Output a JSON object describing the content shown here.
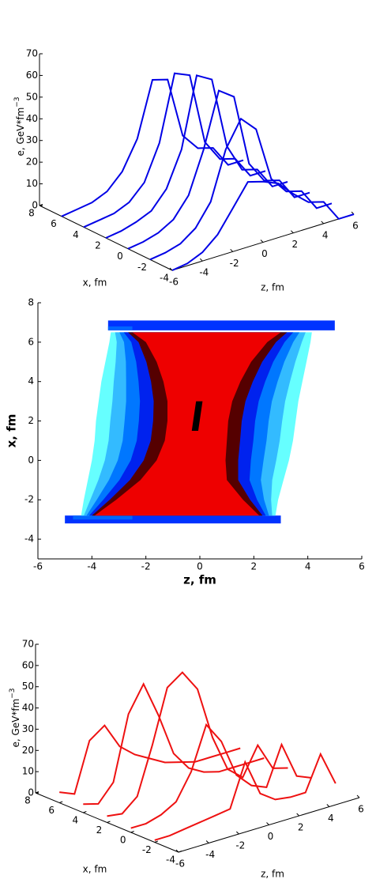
{
  "chart_data": [
    {
      "type": "line3d",
      "color": "#0000e6",
      "xlabel": "x, fm",
      "zlabel": "z, fm",
      "elabel": "e, GeV*fm",
      "elabel_exp": "−3",
      "xlim": [
        -4,
        8
      ],
      "zlim": [
        -6,
        6
      ],
      "elim": [
        0,
        70
      ],
      "xticks": [
        -4,
        -2,
        0,
        2,
        4,
        6,
        8
      ],
      "zticks": [
        -6,
        -4,
        -2,
        0,
        2,
        4,
        6
      ],
      "eticks": [
        0,
        10,
        20,
        30,
        40,
        50,
        60,
        70
      ],
      "z": [
        -6,
        -5,
        -4,
        -3,
        -2,
        -1,
        0,
        1,
        2,
        3,
        4,
        5,
        6
      ],
      "series": [
        {
          "x": 6,
          "values": [
            0,
            1,
            2,
            5,
            12,
            25,
            50,
            48,
            20,
            12,
            10,
            0,
            0
          ]
        },
        {
          "x": 4,
          "values": [
            0,
            1,
            2,
            5,
            12,
            28,
            58,
            55,
            22,
            12,
            10,
            0,
            0
          ]
        },
        {
          "x": 2,
          "values": [
            0,
            1,
            3,
            6,
            14,
            30,
            62,
            58,
            25,
            12,
            10,
            0,
            0
          ]
        },
        {
          "x": 0,
          "values": [
            0,
            1,
            3,
            7,
            16,
            35,
            60,
            55,
            22,
            12,
            10,
            0,
            0
          ]
        },
        {
          "x": -2,
          "values": [
            0,
            1,
            3,
            8,
            18,
            40,
            52,
            45,
            20,
            12,
            10,
            0,
            0
          ]
        },
        {
          "x": -4,
          "values": [
            0,
            1,
            4,
            10,
            20,
            30,
            28,
            25,
            18,
            12,
            10,
            0,
            0
          ]
        }
      ]
    },
    {
      "type": "bands",
      "xlabel": "z, fm",
      "ylabel": "x, fm",
      "xlim": [
        -6,
        6
      ],
      "ylim": [
        -5,
        8
      ],
      "xticks": [
        -6,
        -4,
        -2,
        0,
        2,
        4,
        6
      ],
      "yticks": [
        -4,
        -2,
        0,
        2,
        4,
        6,
        8
      ],
      "rows": [
        -2.8,
        -2,
        -1,
        0,
        1,
        2,
        3,
        4,
        5,
        6,
        6.5
      ],
      "rects": [
        {
          "color": "#0033ff",
          "zlim": [
            -3.4,
            5
          ],
          "xlim": [
            6.6,
            7.1
          ]
        },
        {
          "color": "#0066ff",
          "zlim": [
            -3.4,
            -2.5
          ],
          "xlim": [
            6.6,
            6.8
          ]
        },
        {
          "color": "#0033ff",
          "zlim": [
            -5,
            3
          ],
          "xlim": [
            -3.2,
            -2.8
          ]
        },
        {
          "color": "#0066ff",
          "zlim": [
            -4.7,
            -2.5
          ],
          "xlim": [
            -3,
            -2.8
          ]
        }
      ],
      "layers": [
        {
          "color": "#66ffff",
          "left": [
            -4.4,
            -4.3,
            -4.15,
            -4.0,
            -3.9,
            -3.85,
            -3.75,
            -3.65,
            -3.5,
            -3.35,
            -3.3
          ],
          "right": [
            2.8,
            2.9,
            3.1,
            3.3,
            3.45,
            3.55,
            3.65,
            3.8,
            3.95,
            4.1,
            4.15
          ]
        },
        {
          "color": "#33bbff",
          "left": [
            -4.3,
            -4.06,
            -3.76,
            -3.52,
            -3.38,
            -3.32,
            -3.24,
            -3.19,
            -3.12,
            -3.08,
            -3.14
          ],
          "right": [
            2.68,
            2.64,
            2.68,
            2.83,
            2.96,
            3.05,
            3.16,
            3.34,
            3.54,
            3.78,
            3.92
          ]
        },
        {
          "color": "#0077ff",
          "left": [
            -4.2,
            -3.82,
            -3.37,
            -3.04,
            -2.86,
            -2.79,
            -2.73,
            -2.73,
            -2.74,
            -2.81,
            -2.98
          ],
          "right": [
            2.56,
            2.38,
            2.26,
            2.36,
            2.47,
            2.55,
            2.67,
            2.88,
            3.13,
            3.46,
            3.69
          ]
        },
        {
          "color": "#0022ee",
          "left": [
            -4.1,
            -3.58,
            -2.98,
            -2.56,
            -2.34,
            -2.26,
            -2.22,
            -2.27,
            -2.36,
            -2.54,
            -2.82
          ],
          "right": [
            2.44,
            2.12,
            1.84,
            1.89,
            1.98,
            2.05,
            2.18,
            2.42,
            2.72,
            3.14,
            3.46
          ]
        },
        {
          "color": "#550000",
          "left": [
            -4.0,
            -3.34,
            -2.59,
            -2.08,
            -1.82,
            -1.73,
            -1.71,
            -1.81,
            -1.98,
            -2.27,
            -2.66
          ],
          "right": [
            2.32,
            1.86,
            1.42,
            1.42,
            1.49,
            1.55,
            1.69,
            1.96,
            2.31,
            2.82,
            3.23
          ]
        },
        {
          "color": "#ee0000",
          "left": [
            -3.9,
            -3.1,
            -2.2,
            -1.6,
            -1.3,
            -1.2,
            -1.2,
            -1.35,
            -1.6,
            -2.0,
            -2.5
          ],
          "right": [
            2.2,
            1.6,
            1.0,
            0.95,
            1.0,
            1.05,
            1.2,
            1.5,
            1.9,
            2.5,
            3.0
          ]
        }
      ],
      "blob": {
        "color": "#000000",
        "zlim": [
          -0.3,
          0.1
        ],
        "xlim": [
          1.5,
          3.0
        ]
      }
    },
    {
      "type": "line3d",
      "color": "#ee1111",
      "xlabel": "x, fm",
      "zlabel": "z, fm",
      "elabel": "e, GeV*fm",
      "elabel_exp": "−3",
      "xlim": [
        -4,
        8
      ],
      "zlim": [
        -6,
        6
      ],
      "elim": [
        0,
        70
      ],
      "xticks": [
        -4,
        -2,
        0,
        2,
        4,
        6,
        8
      ],
      "zticks": [
        -6,
        -4,
        -2,
        0,
        2,
        4,
        6
      ],
      "eticks": [
        0,
        10,
        20,
        30,
        40,
        50,
        60,
        70
      ],
      "z": [
        -6,
        -5,
        -4,
        -3,
        -2,
        -1,
        0,
        1,
        2,
        3,
        4,
        5,
        6
      ],
      "series": [
        {
          "x": 6,
          "values": [
            5,
            2,
            25,
            30,
            18,
            12,
            8,
            4,
            2,
            0,
            0,
            0,
            0
          ]
        },
        {
          "x": 4,
          "values": [
            4,
            2,
            10,
            40,
            52,
            35,
            15,
            6,
            2,
            0,
            0,
            0,
            0
          ]
        },
        {
          "x": 2,
          "values": [
            3,
            2,
            8,
            30,
            55,
            60,
            50,
            25,
            8,
            2,
            15,
            2,
            0
          ]
        },
        {
          "x": 0,
          "values": [
            2,
            2,
            4,
            8,
            20,
            40,
            30,
            12,
            5,
            2,
            20,
            3,
            0
          ]
        },
        {
          "x": -2,
          "values": [
            1,
            1,
            2,
            3,
            4,
            5,
            25,
            8,
            3,
            2,
            2,
            18,
            2
          ]
        }
      ]
    }
  ]
}
